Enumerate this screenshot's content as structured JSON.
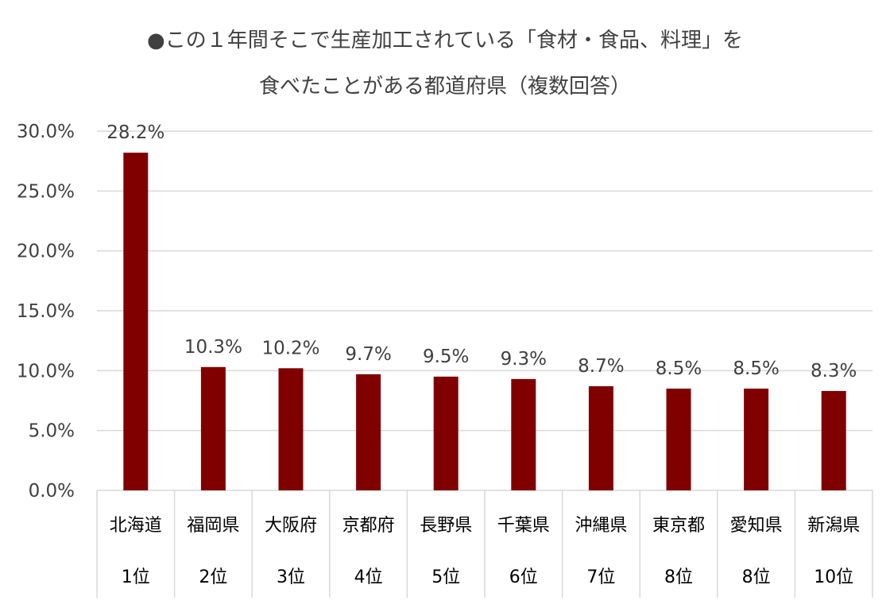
{
  "chart_data": {
    "type": "bar",
    "title_lines": [
      "●この１年間そこで生産加工されている「食材・食品、料理」を",
      "食べたことがある都道府県（複数回答）"
    ],
    "categories": [
      "北海道",
      "福岡県",
      "大阪府",
      "京都府",
      "長野県",
      "千葉県",
      "沖縄県",
      "東京都",
      "愛知県",
      "新潟県"
    ],
    "ranks": [
      "1位",
      "2位",
      "3位",
      "4位",
      "5位",
      "6位",
      "7位",
      "8位",
      "8位",
      "10位"
    ],
    "values": [
      28.2,
      10.3,
      10.2,
      9.7,
      9.5,
      9.3,
      8.7,
      8.5,
      8.5,
      8.3
    ],
    "value_labels": [
      "28.2%",
      "10.3%",
      "10.2%",
      "9.7%",
      "9.5%",
      "9.3%",
      "8.7%",
      "8.5%",
      "8.5%",
      "8.3%"
    ],
    "y_ticks": [
      "0.0%",
      "5.0%",
      "10.0%",
      "15.0%",
      "20.0%",
      "25.0%",
      "30.0%"
    ],
    "ylim": [
      0,
      30
    ],
    "grid": true,
    "bar_color": "#800000",
    "grid_color": "#d9d9d9"
  }
}
